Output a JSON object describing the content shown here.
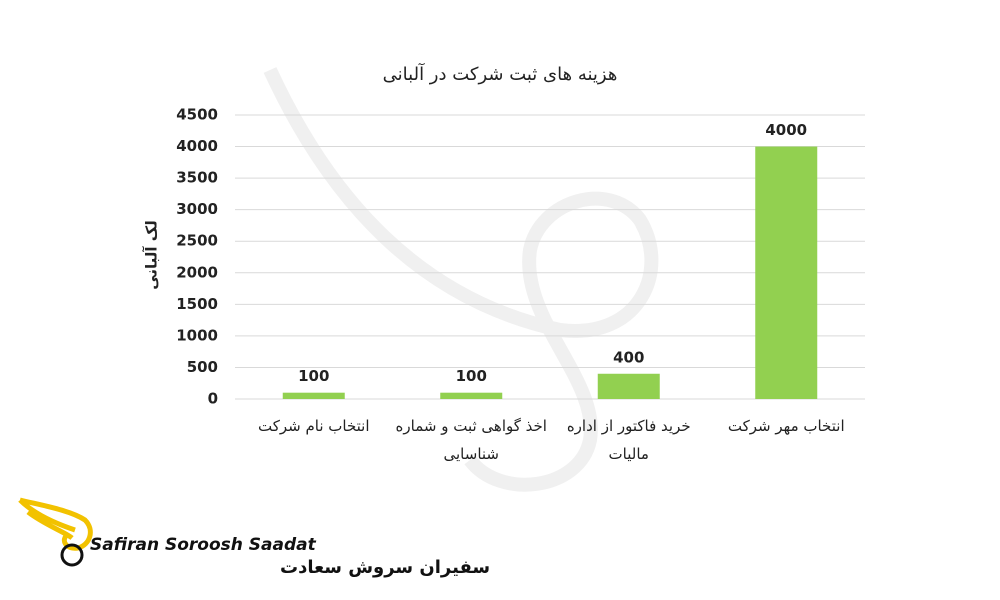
{
  "chart_data": {
    "type": "bar",
    "title": "هزینه های ثبت شرکت در آلبانی",
    "y_label": "لک آلبانی",
    "categories": [
      "انتخاب نام شرکت",
      "اخذ گواهی ثبت و شماره شناسایی",
      "خرید فاکتور از اداره مالیات",
      "انتخاب مهر شرکت"
    ],
    "values": [
      100,
      100,
      400,
      4000
    ],
    "color": "#92d050",
    "ylim": [
      0,
      4500
    ],
    "yticks": [
      0,
      500,
      1000,
      1500,
      2000,
      2500,
      3000,
      3500,
      4000,
      4500
    ],
    "grid": true
  },
  "logo": {
    "latin": "Safiran Soroosh Saadat",
    "persian": "سفیران سروش سعادت"
  }
}
